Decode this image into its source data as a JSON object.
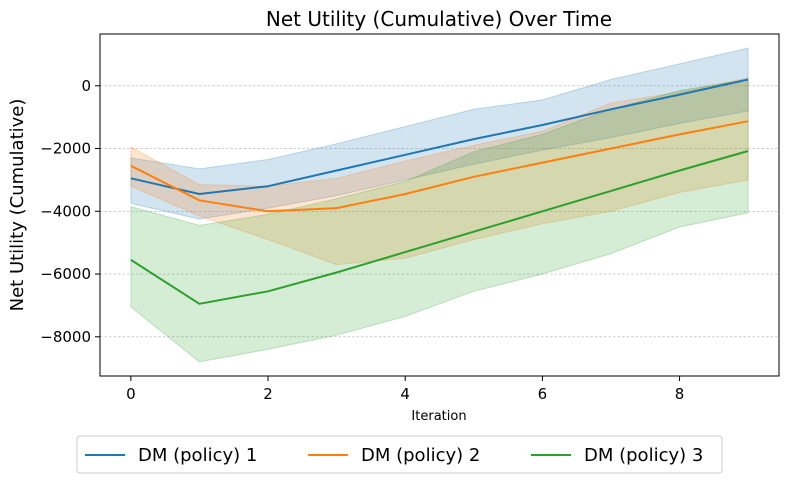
{
  "chart_data": {
    "type": "line",
    "title": "Net Utility (Cumulative) Over Time",
    "xlabel": "Iteration",
    "ylabel": "Net Utility (Cumulative)",
    "xlim": [
      -0.45,
      9.45
    ],
    "ylim": [
      -9250,
      1650
    ],
    "xticks": [
      0,
      2,
      4,
      6,
      8
    ],
    "xtick_labels": [
      "0",
      "2",
      "4",
      "6",
      "8"
    ],
    "yticks": [
      0,
      -2000,
      -4000,
      -6000,
      -8000
    ],
    "ytick_labels": [
      "0",
      "−2000",
      "−4000",
      "−6000",
      "−8000"
    ],
    "grid": "horizontal dashed",
    "legend_position": "bottom-center",
    "x": [
      0,
      1,
      2,
      3,
      4,
      5,
      6,
      7,
      8,
      9
    ],
    "series": [
      {
        "name": "DM (policy) 1",
        "color": "#1f77b4",
        "values": [
          -2950,
          -3450,
          -3200,
          -2700,
          -2200,
          -1700,
          -1250,
          -750,
          -280,
          200
        ],
        "band_lower": [
          -3750,
          -4250,
          -3900,
          -3500,
          -3000,
          -2500,
          -2050,
          -1650,
          -1200,
          -800
        ],
        "band_upper": [
          -2300,
          -2650,
          -2350,
          -1850,
          -1300,
          -750,
          -450,
          200,
          700,
          1200
        ]
      },
      {
        "name": "DM (policy) 2",
        "color": "#ff7f0e",
        "values": [
          -2550,
          -3650,
          -4000,
          -3900,
          -3450,
          -2900,
          -2450,
          -2000,
          -1550,
          -1130
        ],
        "band_lower": [
          -3200,
          -4150,
          -4900,
          -5700,
          -5500,
          -4900,
          -4400,
          -4000,
          -3400,
          -3000
        ],
        "band_upper": [
          -1950,
          -3150,
          -3200,
          -2950,
          -2400,
          -1900,
          -1450,
          -550,
          -200,
          250
        ]
      },
      {
        "name": "DM (policy) 3",
        "color": "#2ca02c",
        "values": [
          -5550,
          -6950,
          -6550,
          -5950,
          -5300,
          -4650,
          -4000,
          -3350,
          -2700,
          -2080
        ],
        "band_lower": [
          -7050,
          -8800,
          -8400,
          -7950,
          -7350,
          -6550,
          -6000,
          -5350,
          -4500,
          -4050
        ],
        "band_upper": [
          -3850,
          -4450,
          -4100,
          -3600,
          -3050,
          -2100,
          -1550,
          -750,
          -150,
          200
        ]
      }
    ]
  }
}
